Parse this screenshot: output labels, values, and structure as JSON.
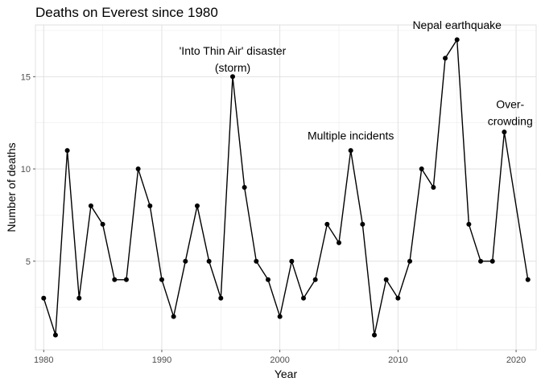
{
  "chart_data": {
    "type": "line",
    "title": "Deaths on Everest since 1980",
    "xlabel": "Year",
    "ylabel": "Number of deaths",
    "xlim": [
      1979.3,
      2021.7
    ],
    "ylim": [
      0.2,
      17.8
    ],
    "x_ticks": [
      1980,
      1990,
      2000,
      2010,
      2020
    ],
    "y_ticks": [
      5,
      10,
      15
    ],
    "x_minor": [
      1985,
      1995,
      2005,
      2015
    ],
    "y_minor": [
      2.5,
      7.5,
      12.5,
      17.5
    ],
    "grid": true,
    "x": [
      1980,
      1981,
      1982,
      1983,
      1984,
      1985,
      1986,
      1987,
      1988,
      1989,
      1990,
      1991,
      1992,
      1993,
      1994,
      1995,
      1996,
      1997,
      1998,
      1999,
      2000,
      2001,
      2002,
      2003,
      2004,
      2005,
      2006,
      2007,
      2008,
      2009,
      2010,
      2011,
      2012,
      2013,
      2014,
      2015,
      2016,
      2017,
      2018,
      2019,
      2021
    ],
    "y": [
      3,
      1,
      11,
      3,
      8,
      7,
      4,
      4,
      10,
      8,
      4,
      2,
      5,
      8,
      5,
      3,
      15,
      9,
      5,
      4,
      2,
      5,
      3,
      4,
      7,
      6,
      11,
      7,
      1,
      4,
      3,
      5,
      10,
      9,
      16,
      17,
      7,
      5,
      5,
      12,
      4
    ],
    "annotations": [
      {
        "lines": [
          "'Into Thin Air' disaster",
          "(storm)"
        ],
        "x": 1996,
        "y": 16.4
      },
      {
        "lines": [
          "Multiple incidents"
        ],
        "x": 2006,
        "y": 11.8
      },
      {
        "lines": [
          "Nepal earthquake"
        ],
        "x": 2015,
        "y": 17.8
      },
      {
        "lines": [
          "Over-",
          "crowding"
        ],
        "x": 2019.5,
        "y": 13.5
      }
    ]
  }
}
